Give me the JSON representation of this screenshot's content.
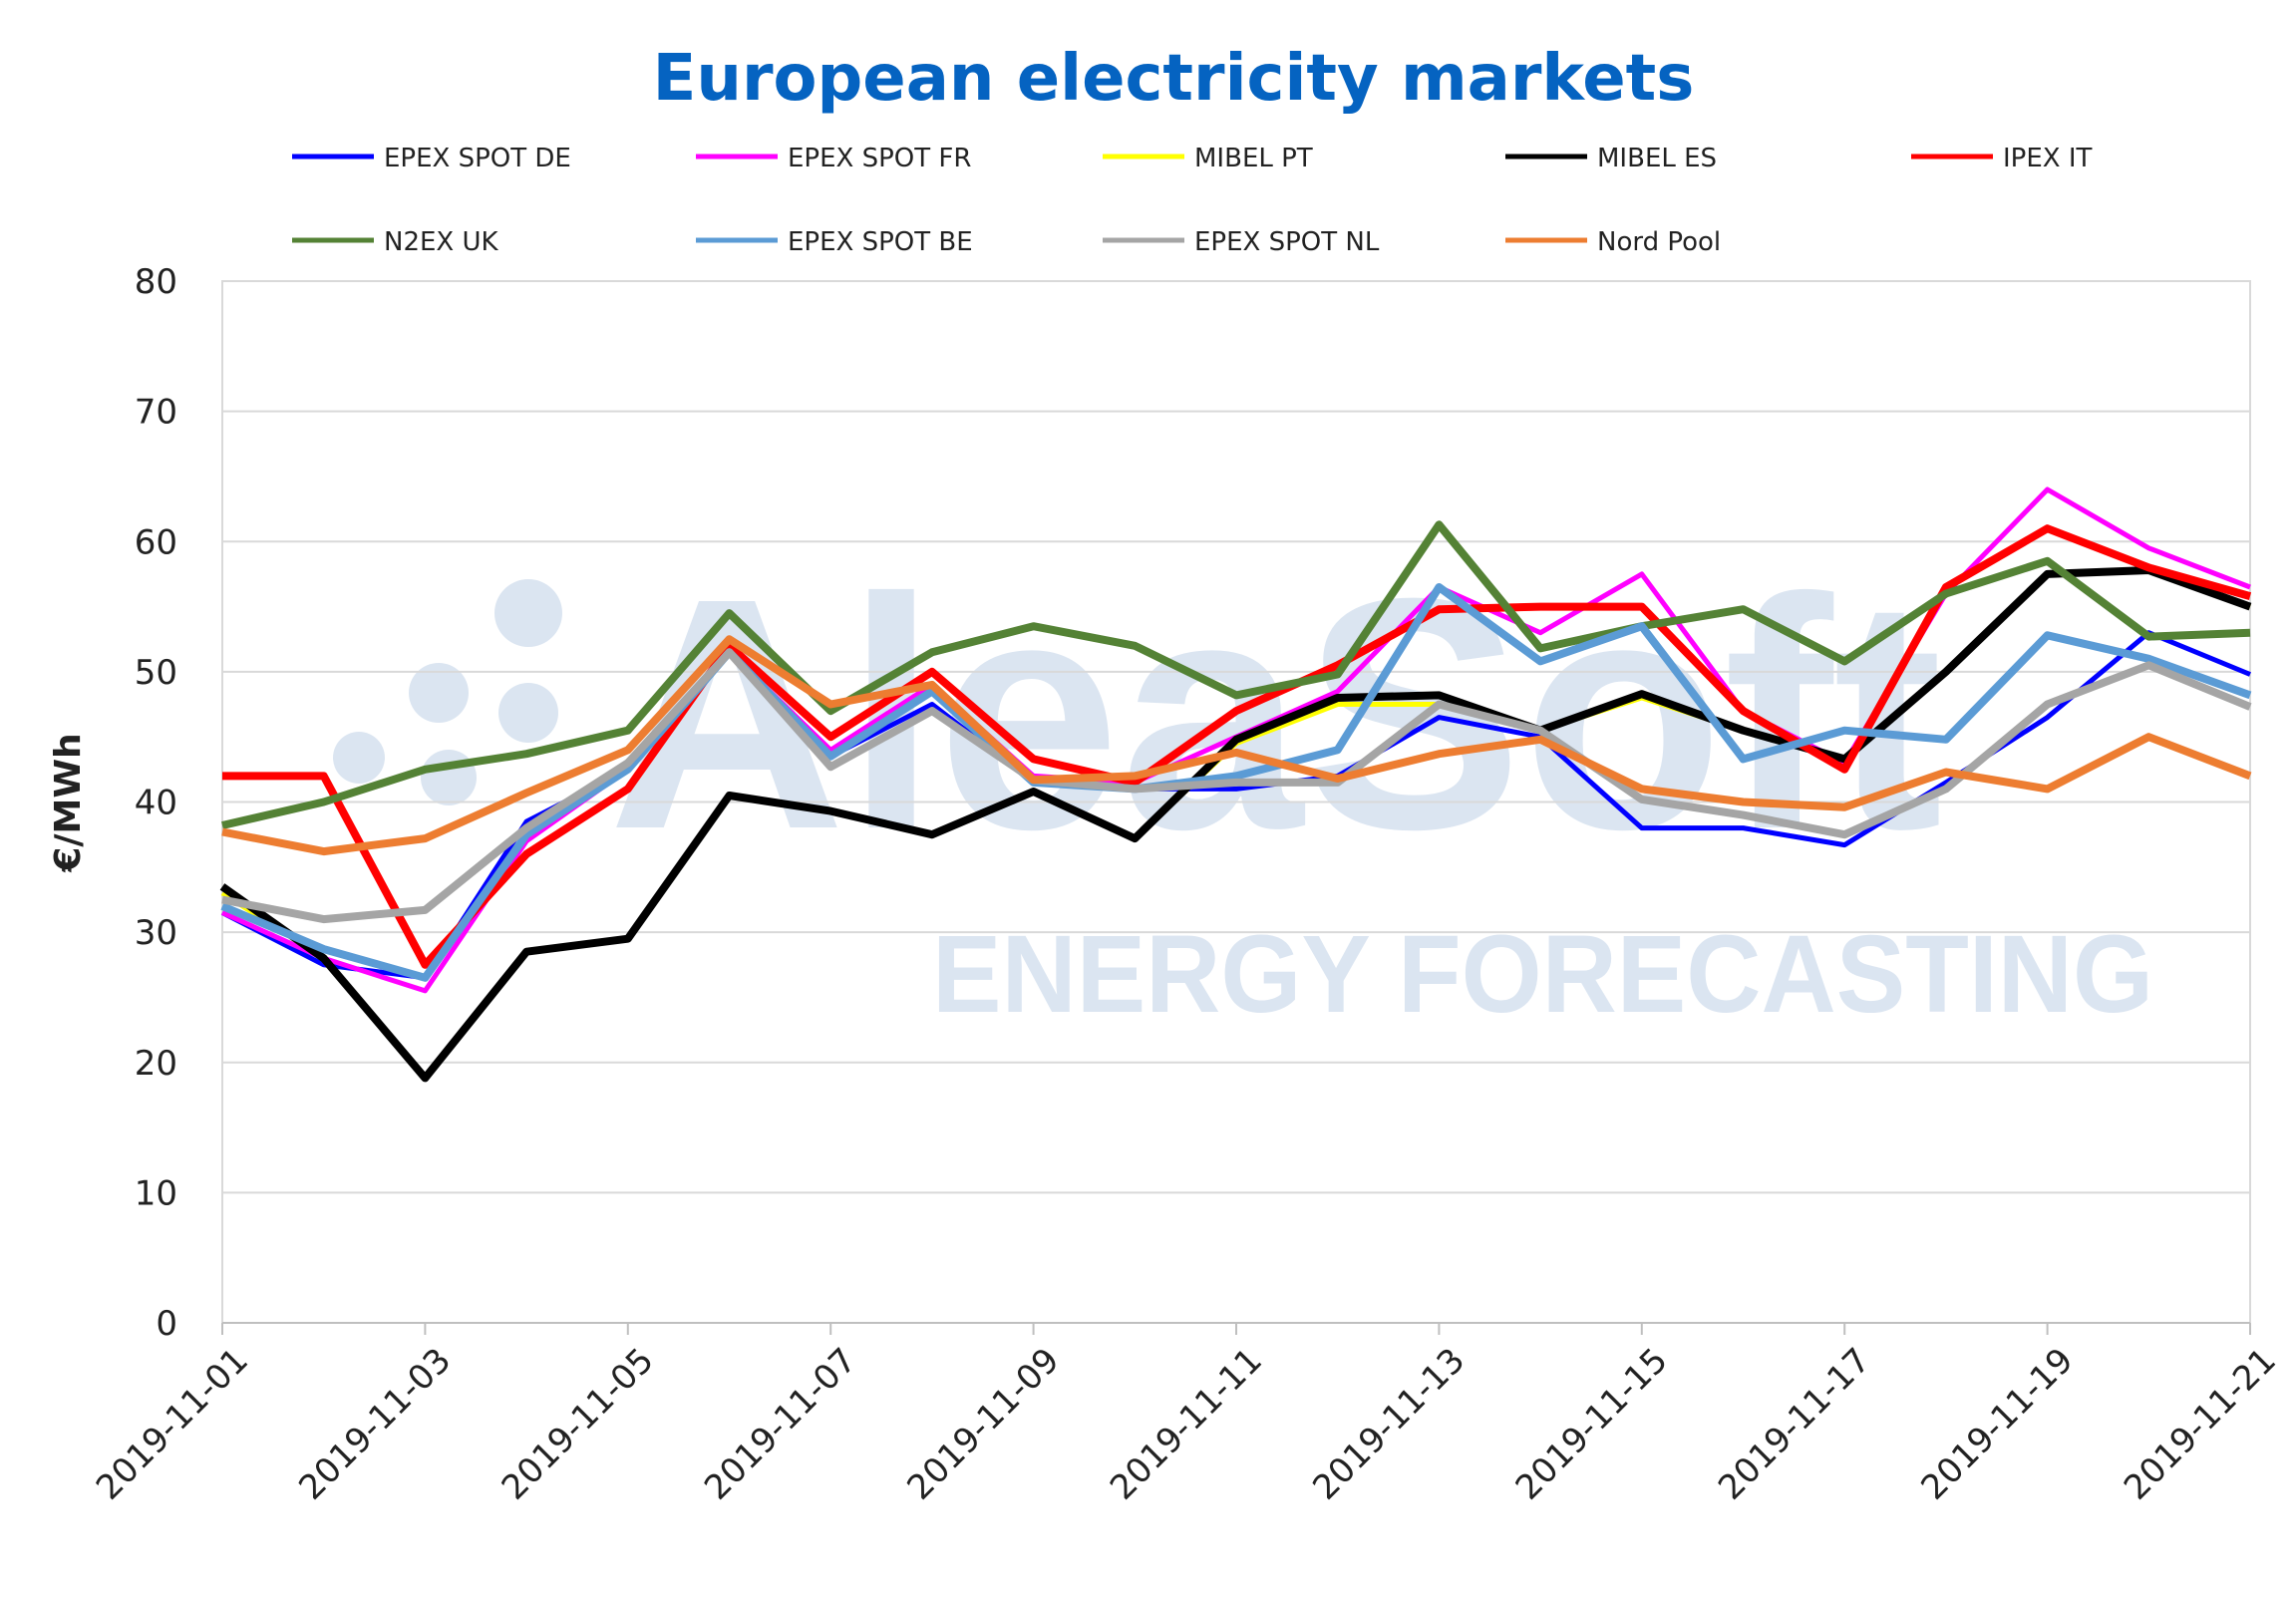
{
  "chart_data": {
    "type": "line",
    "title": "European electricity markets",
    "xlabel": "",
    "ylabel": "€/MWh",
    "ylim": [
      0,
      80
    ],
    "yticks": [
      0,
      10,
      20,
      30,
      40,
      50,
      60,
      70,
      80
    ],
    "grid": true,
    "legend_position": "top",
    "x": [
      "2019-11-01",
      "2019-11-02",
      "2019-11-03",
      "2019-11-04",
      "2019-11-05",
      "2019-11-06",
      "2019-11-07",
      "2019-11-08",
      "2019-11-09",
      "2019-11-10",
      "2019-11-11",
      "2019-11-12",
      "2019-11-13",
      "2019-11-14",
      "2019-11-15",
      "2019-11-16",
      "2019-11-17",
      "2019-11-18",
      "2019-11-19",
      "2019-11-20",
      "2019-11-21"
    ],
    "xtick_labels": [
      "2019-11-01",
      "2019-11-03",
      "2019-11-05",
      "2019-11-07",
      "2019-11-09",
      "2019-11-11",
      "2019-11-13",
      "2019-11-15",
      "2019-11-17",
      "2019-11-19",
      "2019-11-21"
    ],
    "series": [
      {
        "name": "EPEX SPOT DE",
        "color": "#0000ff",
        "values": [
          31.5,
          27.5,
          26.5,
          38.5,
          42.5,
          51.5,
          43.5,
          47.5,
          41.5,
          41,
          41,
          42,
          46.5,
          45,
          38,
          38,
          36.7,
          41.5,
          46.5,
          53,
          49.8
        ]
      },
      {
        "name": "EPEX SPOT FR",
        "color": "#ff00ff",
        "values": [
          31.5,
          28,
          25.5,
          37,
          42.5,
          51.5,
          44,
          49,
          42,
          41.5,
          45,
          48.5,
          56.5,
          53,
          57.5,
          47,
          43,
          56,
          64,
          59.5,
          56.5
        ]
      },
      {
        "name": "MIBEL PT",
        "color": "#ffff00",
        "values": [
          33,
          28,
          18.8,
          28.5,
          29.5,
          40.5,
          39.3,
          37.5,
          40.8,
          37.2,
          44.5,
          47.5,
          47.5,
          45.5,
          48,
          45.5,
          43.3,
          50,
          57.5,
          57.8,
          55
        ]
      },
      {
        "name": "MIBEL ES",
        "color": "#000000",
        "values": [
          33.5,
          28,
          18.8,
          28.5,
          29.5,
          40.5,
          39.3,
          37.5,
          40.8,
          37.2,
          44.8,
          48,
          48.2,
          45.5,
          48.3,
          45.5,
          43.3,
          50,
          57.5,
          57.8,
          55
        ]
      },
      {
        "name": "IPEX IT",
        "color": "#ff0000",
        "values": [
          42,
          42,
          27.5,
          36,
          41,
          52,
          45,
          50,
          43.3,
          41.5,
          47,
          50.5,
          54.8,
          55,
          55,
          47,
          42.5,
          56.5,
          61,
          58,
          55.8
        ]
      },
      {
        "name": "N2EX UK",
        "color": "#548235",
        "values": [
          38.2,
          40,
          42.5,
          43.7,
          45.5,
          54.5,
          47,
          51.5,
          53.5,
          52,
          48.2,
          49.8,
          61.3,
          51.8,
          53.5,
          54.8,
          50.8,
          56,
          58.5,
          52.7,
          53
        ]
      },
      {
        "name": "EPEX SPOT BE",
        "color": "#5b9bd5",
        "values": [
          32,
          28.7,
          26.5,
          37.5,
          42.5,
          51.5,
          43.5,
          48.5,
          41.5,
          41,
          42,
          44,
          56.5,
          50.8,
          53.5,
          43.3,
          45.5,
          44.8,
          52.8,
          51,
          48.2
        ]
      },
      {
        "name": "EPEX SPOT NL",
        "color": "#a5a5a5",
        "values": [
          32.5,
          31,
          31.7,
          38,
          43,
          51.5,
          42.7,
          47,
          41.7,
          41,
          41.5,
          41.5,
          47.5,
          45.5,
          40.2,
          39,
          37.5,
          41,
          47.5,
          50.5,
          47.3
        ]
      },
      {
        "name": "Nord Pool",
        "color": "#ed7d31",
        "values": [
          37.7,
          36.2,
          37.2,
          40.7,
          44,
          52.5,
          47.5,
          49,
          41.7,
          42,
          43.8,
          41.8,
          43.7,
          44.8,
          41,
          40,
          39.6,
          42.3,
          41,
          45,
          42
        ]
      }
    ],
    "title_color": "#0563c1"
  },
  "watermark": {
    "brand": "AleaSoft",
    "tagline": "ENERGY FORECASTING",
    "color": "#dbe5f1"
  }
}
